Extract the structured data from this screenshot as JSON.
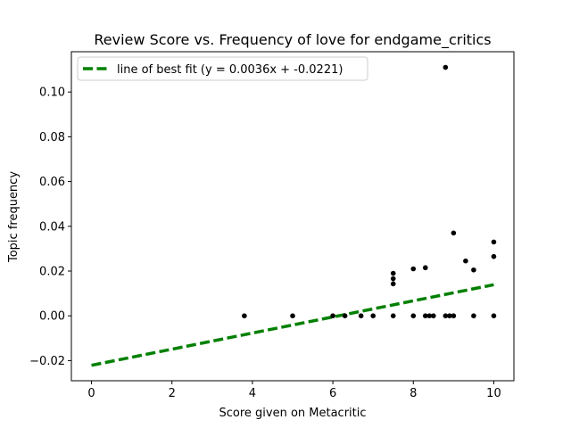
{
  "chart_data": {
    "type": "scatter",
    "title": "Review Score vs. Frequency of love for endgame_critics",
    "xlabel": "Score given on Metacritic",
    "ylabel": "Topic frequency",
    "xlim": [
      -0.5,
      10.5
    ],
    "ylim": [
      -0.029,
      0.118
    ],
    "xticks": [
      0,
      2,
      4,
      6,
      8,
      10
    ],
    "xtick_labels": [
      "0",
      "2",
      "4",
      "6",
      "8",
      "10"
    ],
    "yticks": [
      -0.02,
      0.0,
      0.02,
      0.04,
      0.06,
      0.08,
      0.1
    ],
    "ytick_labels": [
      "−0.02",
      "0.00",
      "0.02",
      "0.04",
      "0.06",
      "0.08",
      "0.10"
    ],
    "grid": false,
    "legend_position": "top-left",
    "colors": {
      "points": "#000000",
      "fit_line": "#008000"
    },
    "series": [
      {
        "kind": "points",
        "points": [
          [
            3.8,
            0.0
          ],
          [
            5.0,
            0.0
          ],
          [
            6.0,
            0.0
          ],
          [
            6.3,
            0.0
          ],
          [
            6.7,
            0.0
          ],
          [
            7.0,
            0.0
          ],
          [
            7.5,
            0.0
          ],
          [
            7.5,
            0.0143
          ],
          [
            7.5,
            0.0166
          ],
          [
            7.5,
            0.019
          ],
          [
            8.0,
            0.0
          ],
          [
            8.0,
            0.021
          ],
          [
            8.3,
            0.0
          ],
          [
            8.3,
            0.0215
          ],
          [
            8.4,
            0.0
          ],
          [
            8.5,
            0.0
          ],
          [
            8.8,
            0.0
          ],
          [
            8.8,
            0.111
          ],
          [
            8.9,
            0.0
          ],
          [
            9.0,
            0.0
          ],
          [
            9.0,
            0.037
          ],
          [
            9.3,
            0.0245
          ],
          [
            9.5,
            0.0
          ],
          [
            9.5,
            0.0205
          ],
          [
            10.0,
            0.0
          ],
          [
            10.0,
            0.0265
          ],
          [
            10.0,
            0.033
          ]
        ]
      },
      {
        "kind": "fit_line",
        "name": "line of best fit (y = 0.0036x + -0.0221)",
        "slope": 0.0036,
        "intercept": -0.0221,
        "x_range": [
          0,
          10
        ]
      }
    ]
  }
}
